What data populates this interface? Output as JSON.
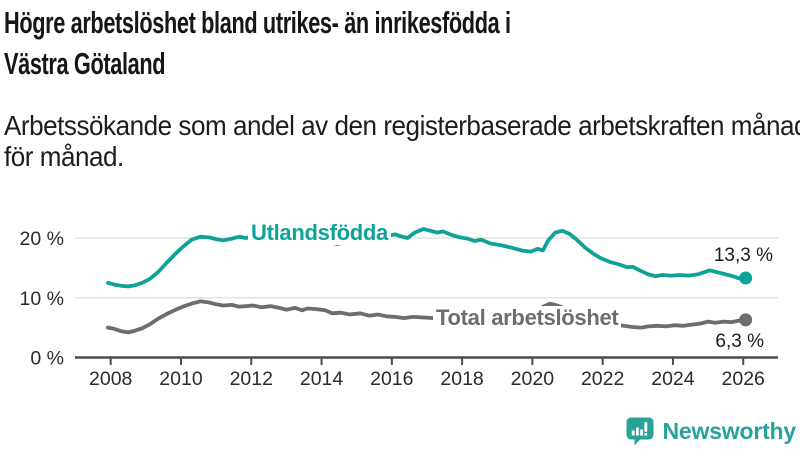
{
  "header": {
    "title_lines": [
      "Högre arbetslöshet bland utrikes- än inrikesfödda i",
      "Västra Götaland"
    ],
    "subtitle_lines": [
      "Arbetssökande som andel av den registerbaserade arbetskraften månad",
      "för månad."
    ]
  },
  "colors": {
    "accent_teal": "#0FA298",
    "series_gray": "#6C6C71",
    "gridline": "#E4E4E4",
    "axis": "#4C4C4C",
    "tick_text": "#2B2B2B",
    "value_text": "#1B1B1B",
    "brand_teal": "#28A39A"
  },
  "chart_data": {
    "type": "line",
    "title": "Högre arbetslöshet bland utrikes- än inrikesfödda i Västra Götaland",
    "subtitle": "Arbetssökande som andel av den registerbaserade arbetskraften månad för månad.",
    "legend_position": "inline-labels-on-lines",
    "grid": true,
    "x_axis": {
      "min": 2008,
      "max": 2026,
      "tick_years": [
        2008,
        2010,
        2012,
        2014,
        2016,
        2018,
        2020,
        2022,
        2024,
        2026
      ],
      "tick_labels": [
        "2008",
        "2010",
        "2012",
        "2014",
        "2016",
        "2018",
        "2020",
        "2022",
        "2024",
        "2026"
      ]
    },
    "y_axis": {
      "unit": "%",
      "ylim": [
        0,
        24
      ],
      "ticks": [
        {
          "value": 0,
          "label": "0 %"
        },
        {
          "value": 10,
          "label": "10 %"
        },
        {
          "value": 20,
          "label": "20 %"
        }
      ]
    },
    "series": [
      {
        "name": "Utlandsfödda",
        "color": "#0FA298",
        "end_label": "13,3 %",
        "end_value": 13.3,
        "x": [
          2007.92,
          2008.1,
          2008.3,
          2008.5,
          2008.7,
          2008.9,
          2009.1,
          2009.35,
          2009.6,
          2009.85,
          2010.05,
          2010.3,
          2010.55,
          2010.8,
          2011.0,
          2011.2,
          2011.45,
          2011.65,
          2011.85,
          2012.05,
          2012.2,
          2012.4,
          2012.7,
          2013.0,
          2013.3,
          2013.6,
          2013.9,
          2014.2,
          2014.45,
          2014.7,
          2015.0,
          2015.3,
          2015.6,
          2015.9,
          2016.1,
          2016.3,
          2016.45,
          2016.65,
          2016.9,
          2017.1,
          2017.3,
          2017.45,
          2017.7,
          2017.95,
          2018.15,
          2018.35,
          2018.55,
          2018.8,
          2019.1,
          2019.4,
          2019.7,
          2019.95,
          2020.15,
          2020.3,
          2020.45,
          2020.65,
          2020.85,
          2021.05,
          2021.25,
          2021.5,
          2021.75,
          2021.95,
          2022.2,
          2022.45,
          2022.7,
          2022.85,
          2023.05,
          2023.3,
          2023.5,
          2023.7,
          2023.95,
          2024.2,
          2024.45,
          2024.7,
          2024.9,
          2025.05,
          2025.25,
          2025.5,
          2025.7,
          2025.9,
          2026.07
        ],
        "values": [
          12.5,
          12.2,
          12.0,
          11.9,
          12.1,
          12.5,
          13.1,
          14.3,
          15.9,
          17.4,
          18.5,
          19.7,
          20.2,
          20.1,
          19.8,
          19.6,
          19.9,
          20.2,
          20.0,
          20.3,
          20.8,
          20.2,
          20.0,
          19.8,
          19.6,
          19.8,
          19.5,
          19.3,
          19.0,
          19.3,
          19.5,
          19.7,
          19.9,
          20.4,
          20.6,
          20.2,
          20.0,
          20.9,
          21.5,
          21.2,
          20.9,
          21.1,
          20.5,
          20.1,
          19.9,
          19.5,
          19.7,
          19.1,
          18.8,
          18.4,
          17.9,
          17.7,
          18.2,
          17.9,
          19.6,
          20.9,
          21.2,
          20.7,
          19.8,
          18.4,
          17.3,
          16.6,
          16.0,
          15.6,
          15.1,
          15.2,
          14.6,
          13.9,
          13.6,
          13.8,
          13.7,
          13.8,
          13.7,
          13.9,
          14.3,
          14.6,
          14.3,
          13.9,
          13.6,
          13.2,
          13.3
        ]
      },
      {
        "name": "Total arbetslöshet",
        "color": "#6C6C71",
        "end_label": "6,3 %",
        "end_value": 6.3,
        "x": [
          2007.92,
          2008.1,
          2008.3,
          2008.5,
          2008.7,
          2008.9,
          2009.1,
          2009.35,
          2009.6,
          2009.85,
          2010.05,
          2010.3,
          2010.55,
          2010.8,
          2011.0,
          2011.2,
          2011.45,
          2011.65,
          2011.85,
          2012.05,
          2012.3,
          2012.55,
          2012.8,
          2013.0,
          2013.25,
          2013.45,
          2013.6,
          2013.85,
          2014.1,
          2014.3,
          2014.55,
          2014.8,
          2015.1,
          2015.35,
          2015.6,
          2015.85,
          2016.1,
          2016.35,
          2016.6,
          2016.9,
          2017.2,
          2017.5,
          2017.8,
          2018.1,
          2018.4,
          2018.7,
          2019.0,
          2019.3,
          2019.6,
          2019.9,
          2020.1,
          2020.3,
          2020.5,
          2020.65,
          2020.85,
          2021.1,
          2021.35,
          2021.6,
          2021.85,
          2022.1,
          2022.35,
          2022.6,
          2022.85,
          2023.1,
          2023.3,
          2023.55,
          2023.8,
          2024.05,
          2024.3,
          2024.55,
          2024.8,
          2025.0,
          2025.2,
          2025.45,
          2025.65,
          2025.9,
          2026.07
        ],
        "values": [
          5.0,
          4.8,
          4.4,
          4.2,
          4.5,
          4.9,
          5.5,
          6.5,
          7.3,
          8.0,
          8.5,
          9.0,
          9.4,
          9.2,
          8.9,
          8.7,
          8.8,
          8.5,
          8.6,
          8.7,
          8.4,
          8.6,
          8.3,
          8.0,
          8.3,
          7.9,
          8.2,
          8.1,
          7.9,
          7.4,
          7.5,
          7.2,
          7.4,
          7.0,
          7.2,
          6.9,
          6.8,
          6.6,
          6.8,
          6.7,
          6.6,
          6.5,
          6.4,
          6.5,
          6.3,
          6.2,
          6.3,
          6.2,
          6.1,
          6.3,
          7.2,
          8.5,
          9.0,
          8.8,
          8.4,
          7.7,
          7.0,
          6.5,
          6.1,
          5.8,
          5.5,
          5.3,
          5.1,
          5.0,
          5.2,
          5.3,
          5.2,
          5.4,
          5.3,
          5.5,
          5.7,
          6.0,
          5.8,
          6.0,
          5.9,
          6.2,
          6.3
        ]
      }
    ]
  },
  "footer": {
    "brand": "Newsworthy"
  }
}
